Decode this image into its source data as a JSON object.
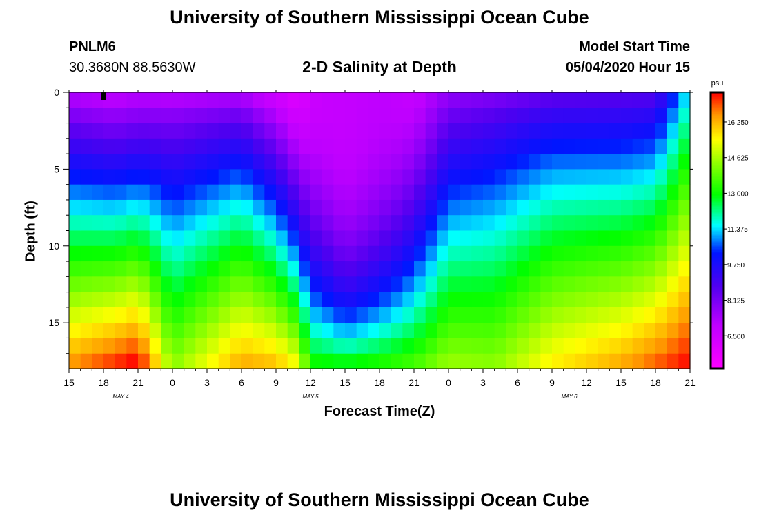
{
  "header": {
    "title": "University of Southern Mississippi Ocean Cube",
    "station_id": "PNLM6",
    "station_coords": "30.3680N 88.5630W",
    "plot_title": "2-D Salinity at Depth",
    "model_start_label": "Model Start Time",
    "model_start_value": "05/04/2020 Hour 15"
  },
  "footer": {
    "title": "University of Southern Mississippi Ocean Cube"
  },
  "chart_data": {
    "type": "heatmap",
    "title": "2-D Salinity at Depth",
    "xlabel": "Forecast Time(Z)",
    "ylabel": "Depth (ft)",
    "x_range_hours": [
      0,
      54
    ],
    "x_ticks": [
      "15",
      "18",
      "21",
      "0",
      "3",
      "6",
      "9",
      "12",
      "15",
      "18",
      "21",
      "0",
      "3",
      "6",
      "9",
      "12",
      "15",
      "18",
      "21"
    ],
    "date_labels": [
      {
        "label": "MAY 4",
        "hour": 4.5
      },
      {
        "label": "MAY 5",
        "hour": 21
      },
      {
        "label": "MAY 6",
        "hour": 43.5
      }
    ],
    "y_range_ft": [
      0,
      18
    ],
    "y_ticks": [
      "0",
      "5",
      "10",
      "15"
    ],
    "colorbar": {
      "unit": "psu",
      "min": 5.0,
      "max": 17.6,
      "ticks": [
        "16.250",
        "14.625",
        "13.000",
        "11.375",
        "9.750",
        "8.125",
        "6.500"
      ],
      "tick_values": [
        16.25,
        14.625,
        13.0,
        11.375,
        9.75,
        8.125,
        6.5
      ]
    },
    "marker": {
      "hour": 3
    },
    "isoline_hours": [
      0,
      4,
      6,
      9,
      15,
      18,
      20,
      21,
      23,
      24,
      27,
      30,
      33,
      37,
      42,
      48,
      51,
      54
    ],
    "salinity_surface_psu": [
      7.0,
      6.8,
      7.0,
      6.8,
      7.0,
      6.4,
      6.0,
      6.6,
      6.8,
      6.8,
      7.0,
      6.8,
      7.6,
      7.8,
      8.3,
      8.5,
      8.6,
      11.6
    ],
    "salinity_bottom_psu": [
      16.7,
      17.5,
      17.9,
      14.4,
      16.5,
      16.3,
      15.5,
      13.3,
      13.3,
      13.3,
      13.5,
      13.8,
      14.6,
      14.4,
      15.7,
      16.5,
      17.1,
      17.7
    ],
    "shape_exponent": [
      0.9,
      1.0,
      1.0,
      0.8,
      0.8,
      1.0,
      1.3,
      1.6,
      2.3,
      2.8,
      2.2,
      1.4,
      0.9,
      0.8,
      0.8,
      0.9,
      0.9,
      0.9
    ]
  }
}
